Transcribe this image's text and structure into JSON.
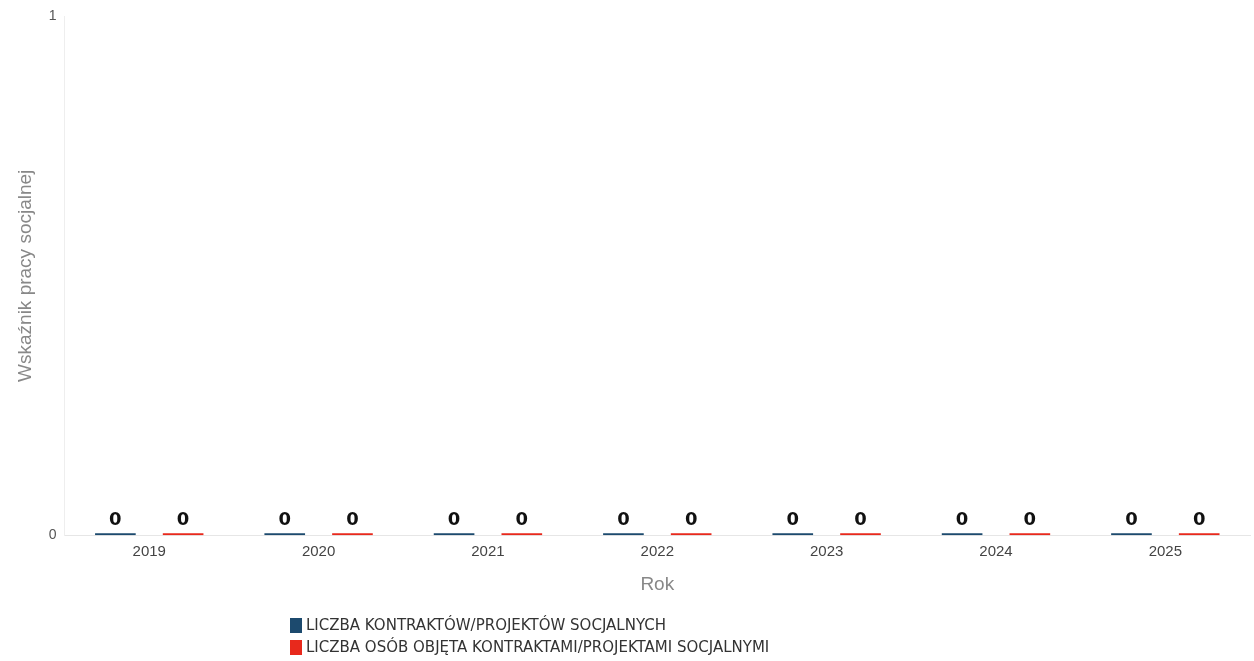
{
  "chart_data": {
    "type": "bar",
    "xlabel": "Rok",
    "ylabel": "Wskaźnik pracy socjalnej",
    "categories": [
      "2019",
      "2020",
      "2021",
      "2022",
      "2023",
      "2024",
      "2025"
    ],
    "series": [
      {
        "name": "LICZBA KONTRAKTÓW/PROJEKTÓW SOCJALNYCH",
        "color": "#1c4a6e",
        "values": [
          0,
          0,
          0,
          0,
          0,
          0,
          0
        ]
      },
      {
        "name": "LICZBA OSÓB OBJĘTA KONTRAKTAMI/PROJEKTAMI SOCJALNYMI",
        "color": "#e8291c",
        "values": [
          0,
          0,
          0,
          0,
          0,
          0,
          0
        ]
      }
    ],
    "ylim": [
      0,
      1
    ],
    "yticks": [
      0,
      1
    ],
    "grid": false,
    "legend": "bottom",
    "data_labels": true
  }
}
